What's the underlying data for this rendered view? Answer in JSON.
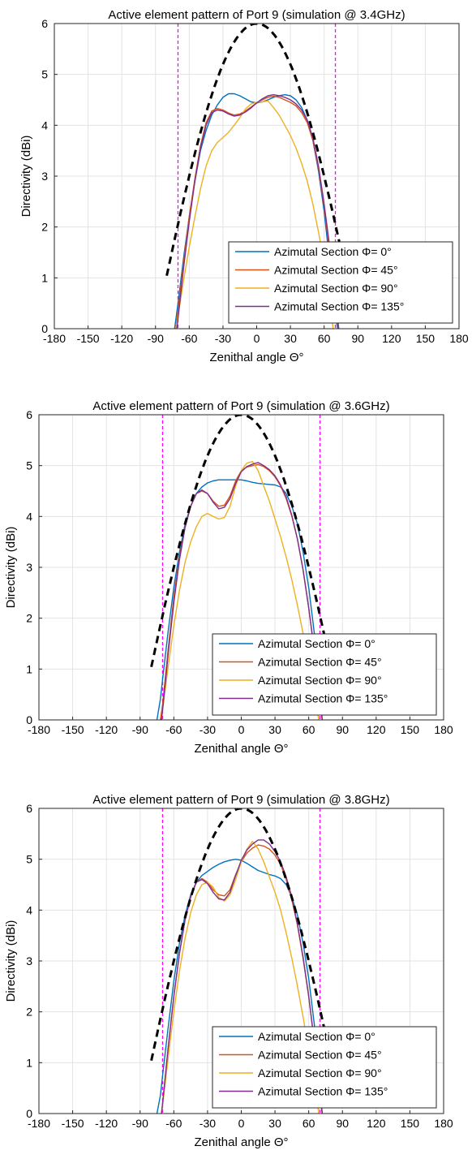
{
  "chart_data": [
    {
      "type": "line",
      "title": "Active element pattern of Port 9 (simulation @ 3.4GHz)",
      "xlabel": "Zenithal angle Θ°",
      "ylabel": "Directivity (dBi)",
      "xlim": [
        -180,
        180
      ],
      "ylim": [
        0,
        6
      ],
      "xticks": [
        "-180",
        "-150",
        "-120",
        "-90",
        "-60",
        "-30",
        "0",
        "30",
        "60",
        "90",
        "120",
        "150",
        "180"
      ],
      "yticks": [
        "0",
        "1",
        "2",
        "3",
        "4",
        "5",
        "6"
      ],
      "grid": true,
      "legend_position": "bottom-right",
      "reference_lines": [
        -70,
        70
      ],
      "envelope_peak": 6,
      "series": [
        {
          "name": "Azimutal Section Φ=   0°",
          "color": "#0072BD",
          "x": [
            -73,
            -70,
            -65,
            -60,
            -55,
            -50,
            -45,
            -40,
            -35,
            -30,
            -25,
            -20,
            -15,
            -10,
            -5,
            0,
            5,
            10,
            15,
            20,
            25,
            30,
            35,
            40,
            45,
            50,
            55,
            60,
            65,
            70,
            72
          ],
          "y": [
            0,
            0.5,
            1.4,
            2.2,
            2.9,
            3.5,
            3.9,
            4.2,
            4.4,
            4.55,
            4.62,
            4.62,
            4.58,
            4.52,
            4.46,
            4.44,
            4.46,
            4.5,
            4.55,
            4.58,
            4.6,
            4.58,
            4.5,
            4.35,
            4.1,
            3.7,
            3.1,
            2.3,
            1.3,
            0.3,
            0
          ]
        },
        {
          "name": "Azimutal Section Φ=  45°",
          "color": "#D95319",
          "x": [
            -72,
            -70,
            -65,
            -60,
            -55,
            -50,
            -45,
            -40,
            -35,
            -30,
            -25,
            -20,
            -15,
            -10,
            -5,
            0,
            5,
            10,
            15,
            20,
            25,
            30,
            35,
            40,
            45,
            50,
            55,
            60,
            65,
            70,
            73
          ],
          "y": [
            0,
            0.35,
            1.3,
            2.2,
            2.95,
            3.6,
            4.05,
            4.28,
            4.33,
            4.3,
            4.24,
            4.2,
            4.22,
            4.28,
            4.36,
            4.44,
            4.5,
            4.55,
            4.57,
            4.55,
            4.5,
            4.45,
            4.38,
            4.25,
            4.05,
            3.7,
            3.15,
            2.4,
            1.5,
            0.5,
            0
          ]
        },
        {
          "name": "Azimutal Section Φ=  90°",
          "color": "#EDB120",
          "x": [
            -72,
            -70,
            -65,
            -60,
            -55,
            -50,
            -45,
            -40,
            -35,
            -30,
            -25,
            -20,
            -15,
            -10,
            -5,
            0,
            5,
            10,
            15,
            20,
            25,
            30,
            35,
            40,
            45,
            50,
            55,
            60,
            65,
            68
          ],
          "y": [
            0,
            0.25,
            0.95,
            1.6,
            2.2,
            2.75,
            3.2,
            3.5,
            3.66,
            3.76,
            3.86,
            4.0,
            4.15,
            4.32,
            4.42,
            4.45,
            4.46,
            4.48,
            4.35,
            4.2,
            4.0,
            3.8,
            3.55,
            3.25,
            2.9,
            2.45,
            1.9,
            1.3,
            0.55,
            0
          ]
        },
        {
          "name": "Azimutal Section Φ= 135°",
          "color": "#7E2F8E",
          "x": [
            -71,
            -70,
            -65,
            -60,
            -55,
            -50,
            -45,
            -40,
            -35,
            -30,
            -25,
            -20,
            -15,
            -10,
            -5,
            0,
            5,
            10,
            15,
            20,
            25,
            30,
            35,
            40,
            45,
            50,
            55,
            60,
            65,
            70,
            73
          ],
          "y": [
            0,
            0.2,
            1.2,
            2.1,
            2.9,
            3.55,
            4.0,
            4.25,
            4.3,
            4.28,
            4.22,
            4.18,
            4.2,
            4.26,
            4.34,
            4.44,
            4.52,
            4.58,
            4.6,
            4.58,
            4.55,
            4.5,
            4.42,
            4.3,
            4.1,
            3.75,
            3.2,
            2.45,
            1.6,
            0.55,
            0
          ]
        }
      ]
    },
    {
      "type": "line",
      "title": "Active element pattern of Port 9 (simulation @ 3.6GHz)",
      "xlabel": "Zenithal angle Θ°",
      "ylabel": "Directivity (dBi)",
      "xlim": [
        -180,
        180
      ],
      "ylim": [
        0,
        6
      ],
      "xticks": [
        "-180",
        "-150",
        "-120",
        "-90",
        "-60",
        "-30",
        "0",
        "30",
        "60",
        "90",
        "120",
        "150",
        "180"
      ],
      "yticks": [
        "0",
        "1",
        "2",
        "3",
        "4",
        "5",
        "6"
      ],
      "grid": true,
      "legend_position": "bottom-right",
      "reference_lines": [
        -70,
        70
      ],
      "envelope_peak": 6,
      "series": [
        {
          "name": "Azimutal Section Φ=   0°",
          "color": "#0072BD",
          "x": [
            -75,
            -72,
            -70,
            -65,
            -60,
            -55,
            -50,
            -45,
            -40,
            -35,
            -30,
            -25,
            -20,
            -15,
            -10,
            -5,
            0,
            5,
            10,
            15,
            20,
            25,
            30,
            35,
            40,
            45,
            50,
            55,
            60,
            65,
            70,
            72
          ],
          "y": [
            0,
            0.4,
            0.8,
            1.75,
            2.6,
            3.3,
            3.85,
            4.2,
            4.45,
            4.58,
            4.66,
            4.7,
            4.72,
            4.72,
            4.72,
            4.72,
            4.72,
            4.7,
            4.67,
            4.65,
            4.64,
            4.63,
            4.62,
            4.58,
            4.45,
            4.2,
            3.85,
            3.3,
            2.6,
            1.7,
            0.6,
            0
          ]
        },
        {
          "name": "Azimutal Section Φ=  45°",
          "color": "#D95319",
          "x": [
            -72,
            -70,
            -65,
            -60,
            -55,
            -50,
            -45,
            -40,
            -35,
            -30,
            -25,
            -20,
            -15,
            -10,
            -5,
            0,
            5,
            10,
            15,
            20,
            25,
            30,
            35,
            40,
            45,
            50,
            55,
            60,
            65,
            70,
            72
          ],
          "y": [
            0,
            0.3,
            1.4,
            2.4,
            3.2,
            3.8,
            4.2,
            4.45,
            4.5,
            4.45,
            4.3,
            4.2,
            4.22,
            4.4,
            4.7,
            4.9,
            4.97,
            5.0,
            5.02,
            4.98,
            4.9,
            4.78,
            4.6,
            4.35,
            4.0,
            3.55,
            2.95,
            2.2,
            1.35,
            0.4,
            0
          ]
        },
        {
          "name": "Azimutal Section Φ=  90°",
          "color": "#EDB120",
          "x": [
            -71,
            -70,
            -65,
            -60,
            -55,
            -50,
            -45,
            -40,
            -35,
            -30,
            -25,
            -20,
            -15,
            -10,
            -5,
            0,
            5,
            10,
            15,
            20,
            25,
            30,
            35,
            40,
            45,
            50,
            55,
            60,
            65,
            69
          ],
          "y": [
            0,
            0.2,
            1.05,
            1.85,
            2.55,
            3.1,
            3.5,
            3.8,
            4.0,
            4.06,
            4.0,
            3.95,
            3.98,
            4.2,
            4.6,
            4.9,
            5.05,
            5.08,
            4.9,
            4.6,
            4.3,
            3.95,
            3.6,
            3.2,
            2.75,
            2.25,
            1.7,
            1.1,
            0.5,
            0
          ]
        },
        {
          "name": "Azimutal Section Φ= 135°",
          "color": "#7E2F8E",
          "x": [
            -71,
            -70,
            -65,
            -60,
            -55,
            -50,
            -45,
            -40,
            -35,
            -30,
            -25,
            -20,
            -15,
            -10,
            -5,
            0,
            5,
            10,
            15,
            20,
            25,
            30,
            35,
            40,
            45,
            50,
            55,
            60,
            65,
            70,
            72
          ],
          "y": [
            0,
            0.2,
            1.3,
            2.3,
            3.15,
            3.78,
            4.2,
            4.45,
            4.52,
            4.45,
            4.28,
            4.15,
            4.18,
            4.35,
            4.65,
            4.88,
            4.98,
            5.03,
            5.06,
            5.0,
            4.92,
            4.8,
            4.62,
            4.38,
            4.02,
            3.55,
            2.95,
            2.2,
            1.35,
            0.4,
            0
          ]
        }
      ]
    },
    {
      "type": "line",
      "title": "Active element pattern of Port 9 (simulation @ 3.8GHz)",
      "xlabel": "Zenithal angle Θ°",
      "ylabel": "Directivity (dBi)",
      "xlim": [
        -180,
        180
      ],
      "ylim": [
        0,
        6
      ],
      "xticks": [
        "-180",
        "-150",
        "-120",
        "-90",
        "-60",
        "-30",
        "0",
        "30",
        "60",
        "90",
        "120",
        "150",
        "180"
      ],
      "yticks": [
        "0",
        "1",
        "2",
        "3",
        "4",
        "5",
        "6"
      ],
      "grid": true,
      "legend_position": "bottom-right",
      "reference_lines": [
        -70,
        70
      ],
      "envelope_peak": 6,
      "series": [
        {
          "name": "Azimutal Section Φ=   0°",
          "color": "#0072BD",
          "x": [
            -75,
            -72,
            -70,
            -65,
            -60,
            -55,
            -50,
            -45,
            -40,
            -35,
            -30,
            -25,
            -20,
            -15,
            -10,
            -5,
            0,
            5,
            10,
            15,
            20,
            25,
            30,
            35,
            40,
            45,
            50,
            55,
            60,
            65,
            70,
            72
          ],
          "y": [
            0,
            0.35,
            0.75,
            1.7,
            2.6,
            3.35,
            3.9,
            4.3,
            4.55,
            4.68,
            4.76,
            4.84,
            4.9,
            4.95,
            4.98,
            5.0,
            4.98,
            4.92,
            4.85,
            4.78,
            4.74,
            4.7,
            4.67,
            4.62,
            4.5,
            4.25,
            3.9,
            3.35,
            2.65,
            1.75,
            0.6,
            0
          ]
        },
        {
          "name": "Azimutal Section Φ=  45°",
          "color": "#D95319",
          "x": [
            -71,
            -70,
            -65,
            -60,
            -55,
            -50,
            -45,
            -40,
            -35,
            -30,
            -25,
            -20,
            -15,
            -10,
            -5,
            0,
            5,
            10,
            15,
            20,
            25,
            30,
            35,
            40,
            45,
            50,
            55,
            60,
            65,
            70,
            72
          ],
          "y": [
            0,
            0.2,
            1.3,
            2.3,
            3.15,
            3.8,
            4.25,
            4.55,
            4.62,
            4.55,
            4.4,
            4.3,
            4.28,
            4.4,
            4.7,
            4.95,
            5.12,
            5.22,
            5.28,
            5.26,
            5.2,
            5.08,
            4.9,
            4.6,
            4.2,
            3.7,
            3.05,
            2.3,
            1.4,
            0.4,
            0
          ]
        },
        {
          "name": "Azimutal Section Φ=  90°",
          "color": "#EDB120",
          "x": [
            -71,
            -70,
            -65,
            -60,
            -55,
            -50,
            -45,
            -40,
            -35,
            -30,
            -25,
            -20,
            -15,
            -10,
            -5,
            0,
            5,
            10,
            15,
            20,
            25,
            30,
            35,
            40,
            45,
            50,
            55,
            60,
            65,
            69
          ],
          "y": [
            0,
            0.15,
            1.1,
            2.0,
            2.8,
            3.45,
            3.95,
            4.3,
            4.5,
            4.55,
            4.45,
            4.25,
            4.18,
            4.3,
            4.6,
            4.95,
            5.2,
            5.35,
            5.2,
            4.95,
            4.65,
            4.35,
            4.0,
            3.55,
            3.05,
            2.5,
            1.9,
            1.25,
            0.6,
            0
          ]
        },
        {
          "name": "Azimutal Section Φ= 135°",
          "color": "#7E2F8E",
          "x": [
            -71,
            -70,
            -65,
            -60,
            -55,
            -50,
            -45,
            -40,
            -35,
            -30,
            -25,
            -20,
            -15,
            -10,
            -5,
            0,
            5,
            10,
            15,
            20,
            25,
            30,
            35,
            40,
            45,
            50,
            55,
            60,
            65,
            70,
            72
          ],
          "y": [
            0,
            0.2,
            1.3,
            2.3,
            3.15,
            3.82,
            4.27,
            4.55,
            4.6,
            4.52,
            4.35,
            4.22,
            4.2,
            4.35,
            4.68,
            4.98,
            5.18,
            5.3,
            5.38,
            5.38,
            5.3,
            5.15,
            4.95,
            4.65,
            4.25,
            3.72,
            3.08,
            2.3,
            1.4,
            0.4,
            0
          ]
        }
      ]
    }
  ]
}
